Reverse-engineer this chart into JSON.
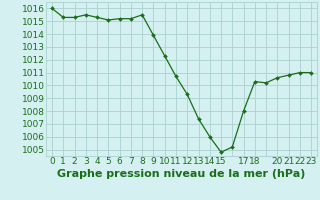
{
  "x": [
    0,
    1,
    2,
    3,
    4,
    5,
    6,
    7,
    8,
    9,
    10,
    11,
    12,
    13,
    14,
    15,
    16,
    17,
    18,
    19,
    20,
    21,
    22,
    23
  ],
  "y": [
    1016.0,
    1015.3,
    1015.3,
    1015.5,
    1015.3,
    1015.1,
    1015.2,
    1015.2,
    1015.5,
    1013.9,
    1012.3,
    1010.7,
    1009.3,
    1007.4,
    1006.0,
    1004.8,
    1005.2,
    1008.0,
    1010.3,
    1010.2,
    1010.6,
    1010.8,
    1011.0,
    1011.0
  ],
  "line_color": "#1a6e1a",
  "marker_color": "#1a6e1a",
  "bg_color": "#d4f0f0",
  "grid_color": "#b0d4d4",
  "text_color": "#1a6e1a",
  "xlabel": "Graphe pression niveau de la mer (hPa)",
  "ylim": [
    1004.5,
    1016.5
  ],
  "xlim": [
    -0.5,
    23.5
  ],
  "yticks": [
    1005,
    1006,
    1007,
    1008,
    1009,
    1010,
    1011,
    1012,
    1013,
    1014,
    1015,
    1016
  ],
  "xtick_labels": [
    "0",
    "1",
    "2",
    "3",
    "4",
    "5",
    "6",
    "7",
    "8",
    "9",
    "10",
    "11",
    "12",
    "13",
    "14",
    "15",
    "",
    "17",
    "18",
    "",
    "20",
    "21",
    "22",
    "23"
  ],
  "tick_fontsize": 6.5,
  "xlabel_fontsize": 8
}
